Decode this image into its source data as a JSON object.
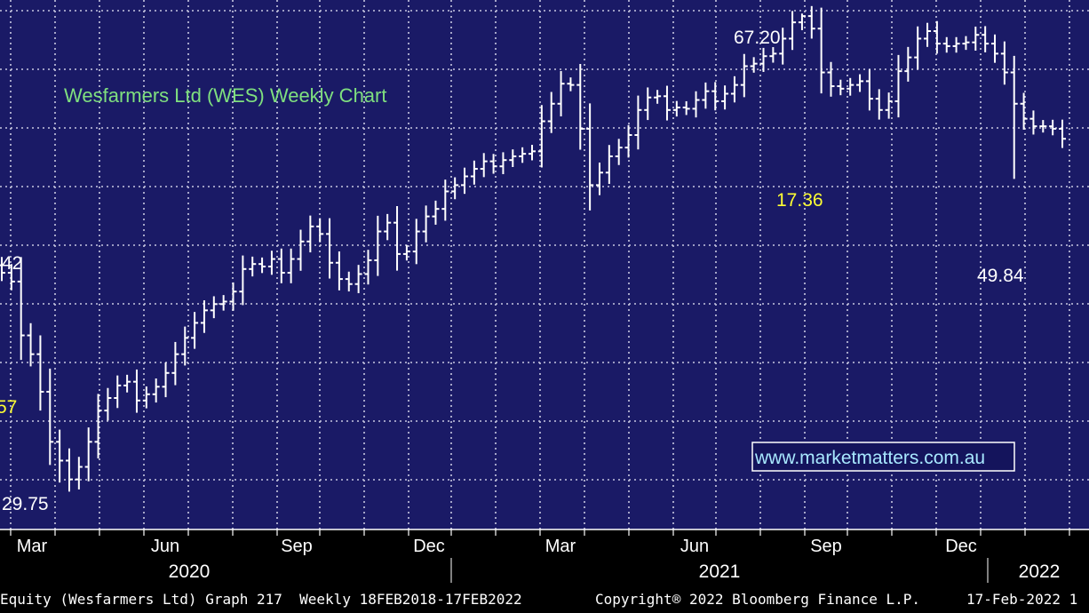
{
  "colors": {
    "plot_background": "#1a1a66",
    "grid": "#c8c8e0",
    "price_bars": "#ffffff",
    "title_text": "#7fe07f",
    "yellow_labels": "#ffff33",
    "white_labels": "#ffffff",
    "url_box_text": "#a8e8ff"
  },
  "chart_data": {
    "type": "ohlc",
    "title": "Wesfarmers Ltd (WES) Weekly Chart",
    "frequency": "weekly",
    "x_tick_labels": [
      "Mar",
      "Jun",
      "Sep",
      "Dec",
      "Mar",
      "Jun",
      "Sep",
      "Dec"
    ],
    "year_labels": [
      "2020",
      "2021",
      "2022"
    ],
    "ylim": [
      26,
      68
    ],
    "y_scale": "linear",
    "grid": true,
    "legend": "none",
    "annotations": [
      {
        "text": "67.20",
        "color": "white"
      },
      {
        "text": "17.36",
        "color": "yellow"
      },
      {
        "text": "49.84",
        "color": "white"
      },
      {
        "text": "42",
        "color": "white"
      },
      {
        "text": "57",
        "color": "yellow"
      },
      {
        "text": "29.75",
        "color": "white"
      }
    ],
    "close": [
      46.5,
      45.8,
      41.5,
      40,
      37,
      33,
      31.5,
      30,
      31,
      33,
      35.5,
      36.5,
      37.5,
      37.8,
      36.3,
      36.8,
      37.4,
      38.5,
      40,
      41.3,
      42.5,
      43.5,
      44,
      44.2,
      45,
      46.8,
      47.2,
      47,
      47.6,
      46.5,
      47.6,
      49,
      50.2,
      49.6,
      47.3,
      46,
      45.6,
      46.4,
      47.5,
      49.8,
      50.5,
      48,
      48.2,
      49.8,
      51,
      51.6,
      53,
      53.5,
      54.2,
      54.8,
      55.4,
      55,
      55.5,
      55.8,
      56,
      56.2,
      58.6,
      60,
      61.6,
      61.5,
      58,
      53.5,
      54.5,
      55.8,
      56.5,
      57.5,
      59.5,
      60.5,
      60.6,
      59.5,
      59.7,
      59.6,
      60.3,
      61,
      60.2,
      60.8,
      61.5,
      63,
      63.2,
      63.8,
      64,
      65.2,
      66.5,
      67,
      66,
      62.5,
      61.4,
      61.2,
      61.5,
      61.8,
      60.4,
      59.5,
      60.2,
      62.6,
      63.7,
      65.2,
      65.8,
      64.8,
      64.6,
      64.8,
      64.9,
      65.5,
      64.8,
      64,
      62.5,
      60,
      58.8,
      58.2,
      58.2,
      58,
      57.2
    ]
  },
  "url_box": "www.marketmatters.com.au",
  "footer": {
    "left": "Equity (Wesfarmers Ltd) Graph 217  Weekly 18FEB2018-17FEB2022",
    "copyright": "Copyright® 2022 Bloomberg Finance L.P.",
    "date": "17-Feb-2022 1"
  }
}
